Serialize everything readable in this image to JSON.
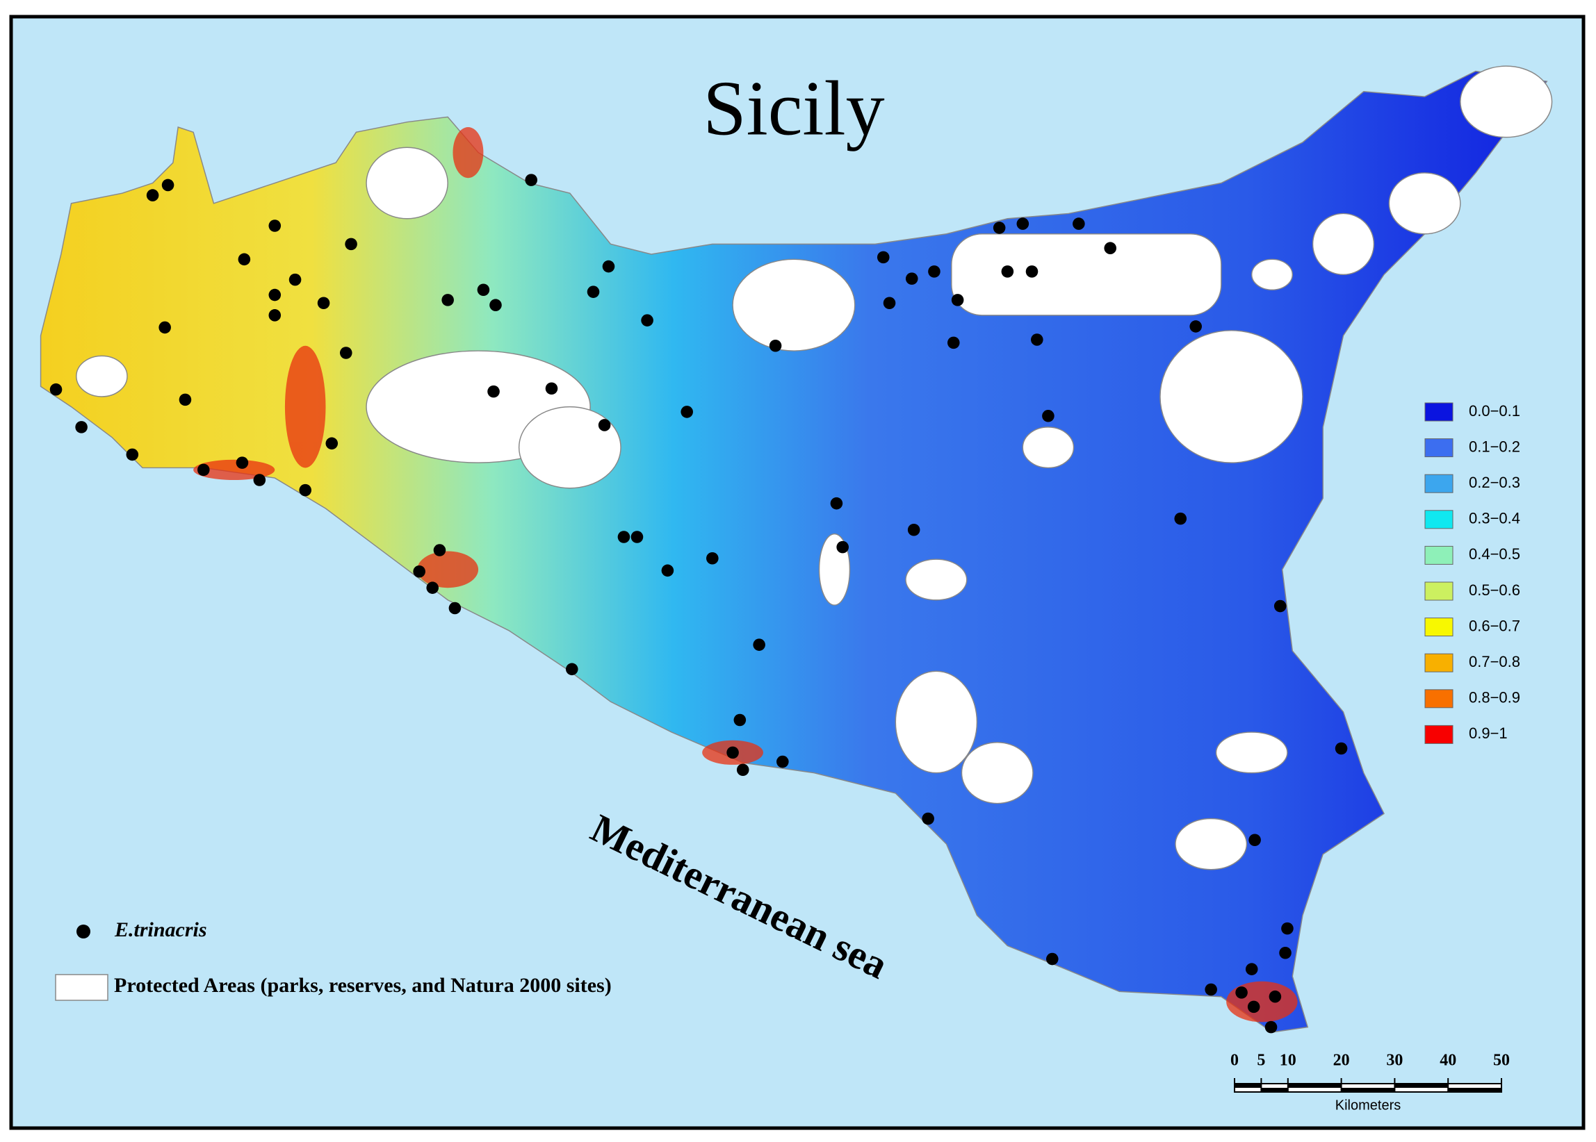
{
  "map": {
    "title": "Sicily",
    "sea_label": "Mediterranean sea",
    "legend": {
      "classes": [
        {
          "label": "0.0−0.1",
          "color": "#0a14e0"
        },
        {
          "label": "0.1−0.2",
          "color": "#3c6ef0"
        },
        {
          "label": "0.2−0.3",
          "color": "#3ca6ee"
        },
        {
          "label": "0.3−0.4",
          "color": "#10e8f0"
        },
        {
          "label": "0.4−0.5",
          "color": "#8ef0b8"
        },
        {
          "label": "0.5−0.6",
          "color": "#ccf060"
        },
        {
          "label": "0.6−0.7",
          "color": "#f8f800"
        },
        {
          "label": "0.7−0.8",
          "color": "#f8b000"
        },
        {
          "label": "0.8−0.9",
          "color": "#f87000"
        },
        {
          "label": "0.9−1",
          "color": "#f80000"
        }
      ],
      "species": "E.trinacris",
      "protected_areas": "Protected Areas (parks, reserves, and Natura 2000 sites)"
    },
    "scale_bar": {
      "ticks": [
        0,
        5,
        10,
        20,
        30,
        40,
        50
      ],
      "unit": "Kilometers"
    }
  }
}
